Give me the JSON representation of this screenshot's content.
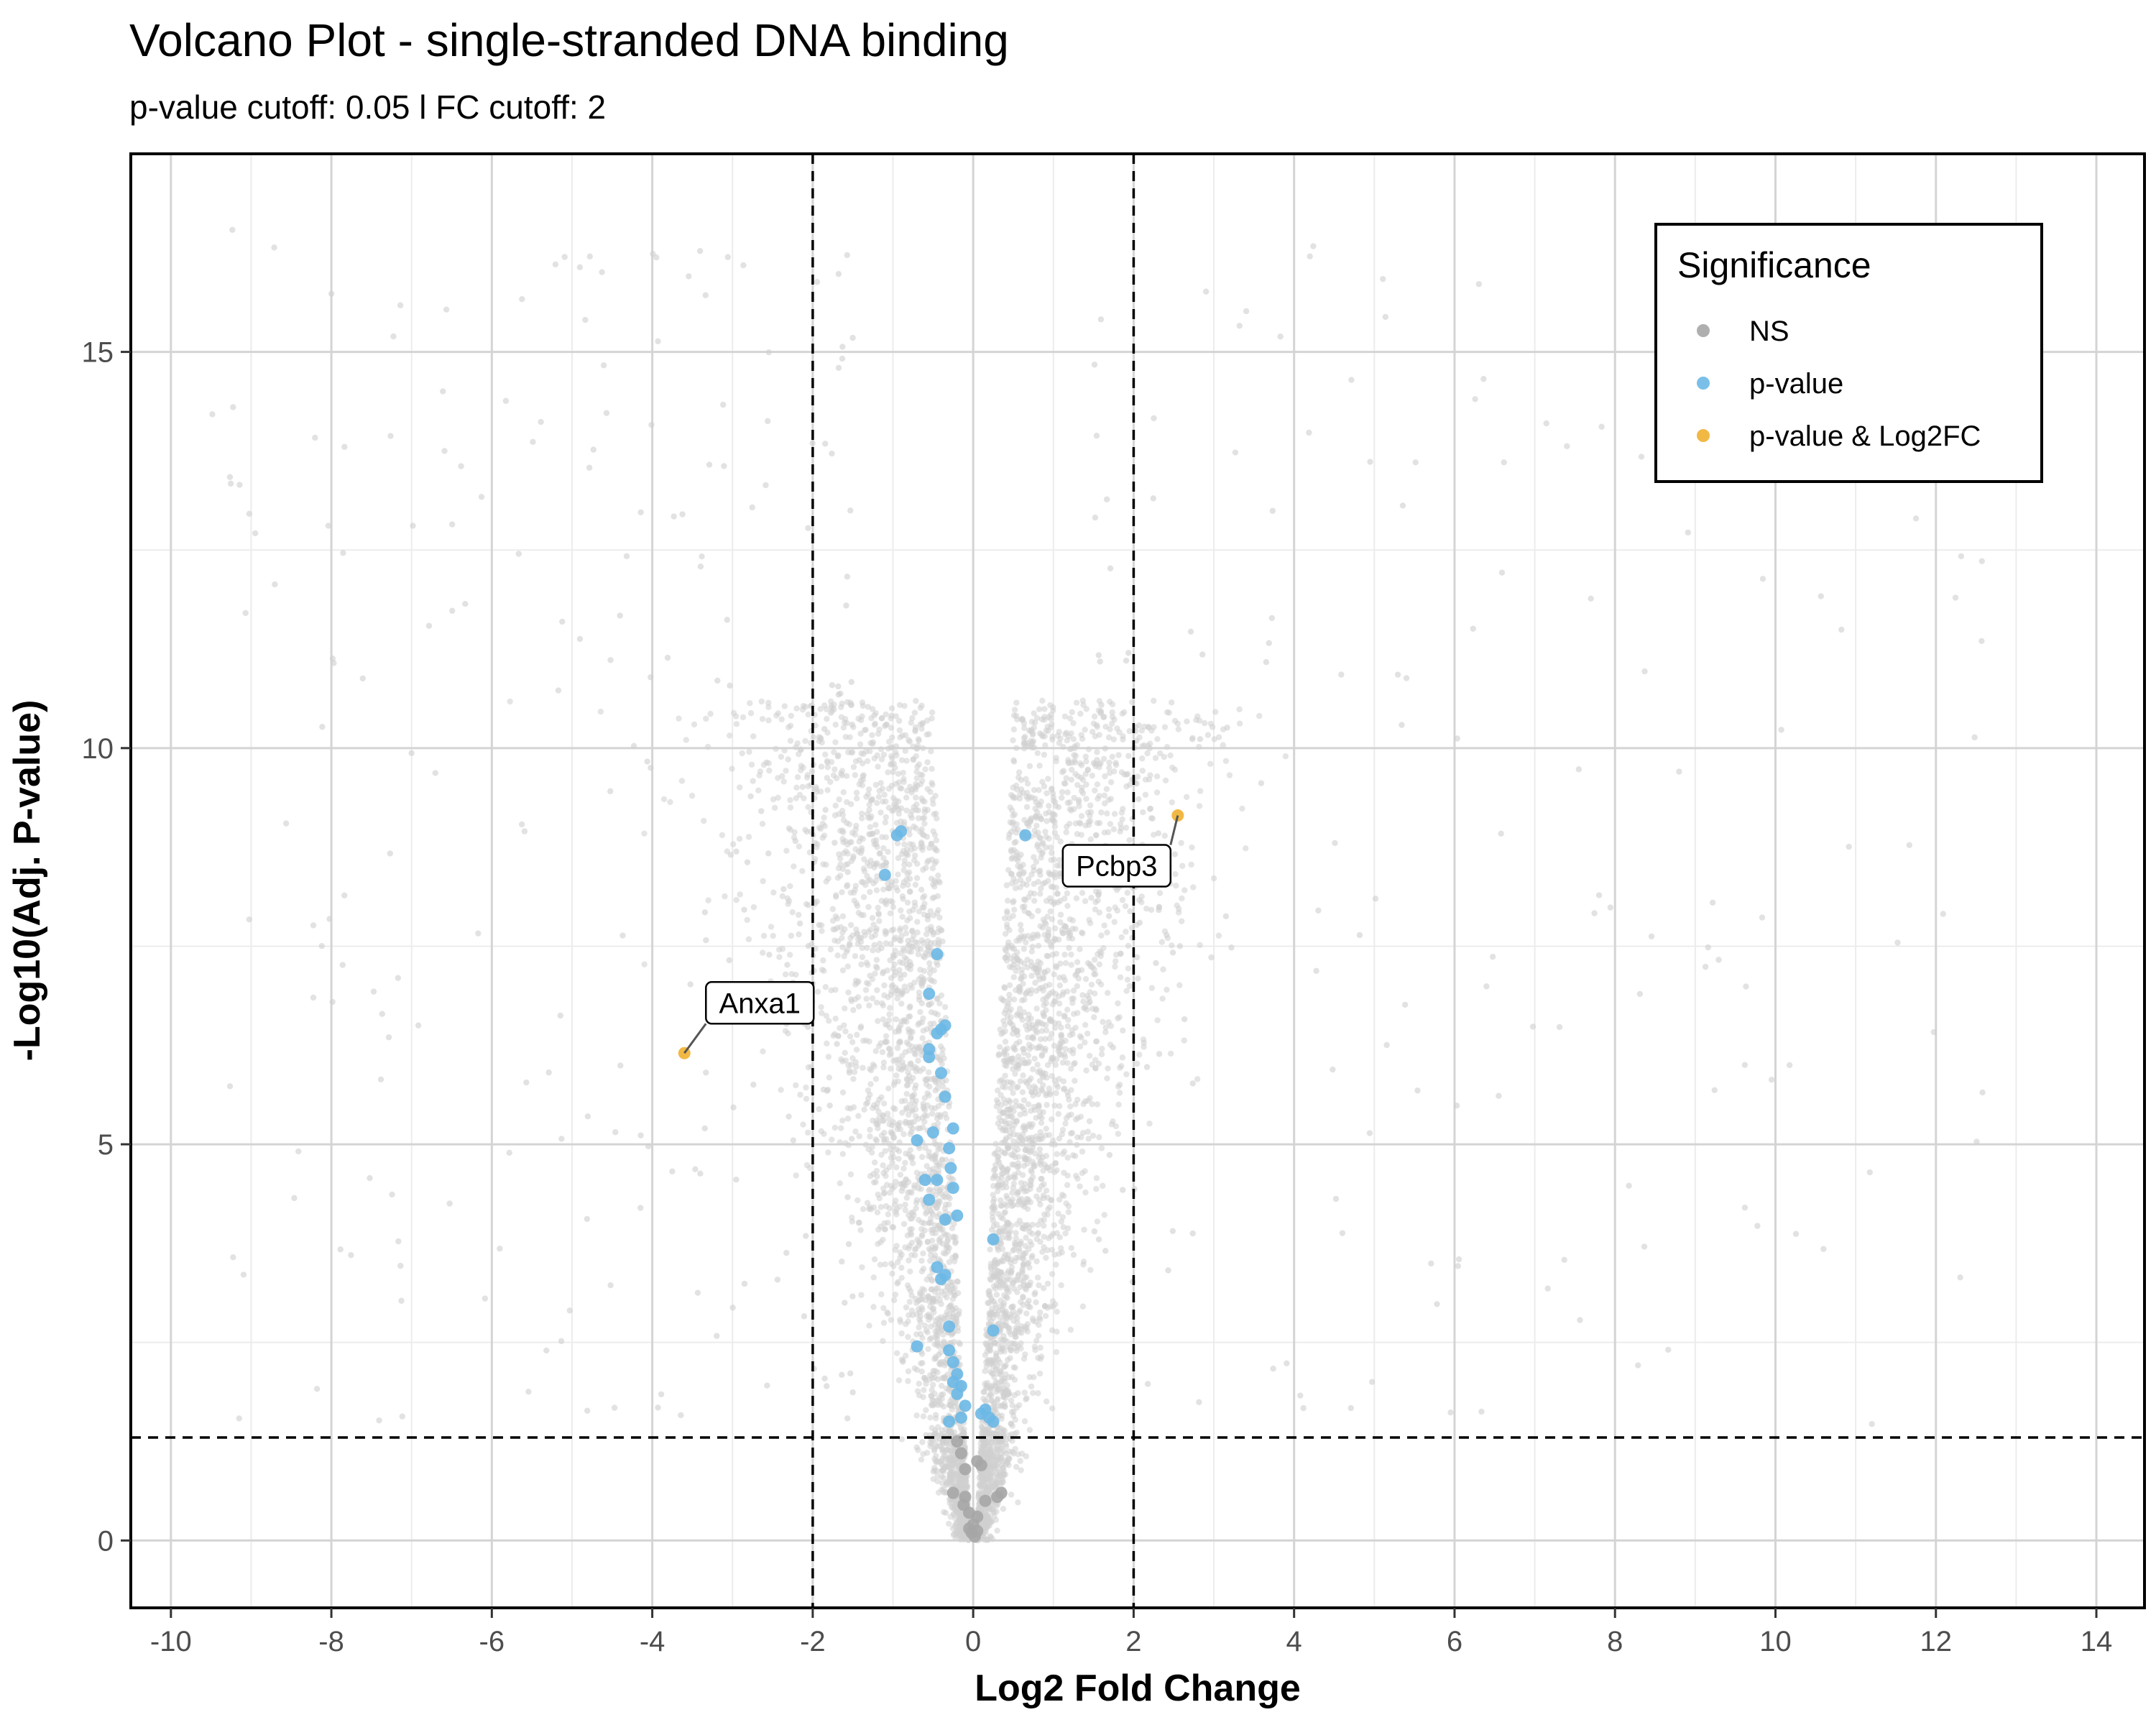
{
  "chart_data": {
    "type": "scatter",
    "title": "Volcano Plot - single-stranded DNA binding",
    "subtitle": "p-value cutoff: 0.05 l FC cutoff: 2",
    "xlabel": "Log2 Fold Change",
    "ylabel": "-Log10(Adj. P-value)",
    "xlim": [
      -10.5,
      14.6
    ],
    "ylim": [
      -0.85,
      17.5
    ],
    "xticks": [
      -10,
      -8,
      -6,
      -4,
      -2,
      0,
      2,
      4,
      6,
      8,
      10,
      12,
      14
    ],
    "xtick_labels": [
      "-10",
      "-8",
      "-6",
      "-4",
      "-2",
      "0",
      "2",
      "4",
      "6",
      "8",
      "10",
      "12",
      "14"
    ],
    "yticks": [
      0,
      5,
      10,
      15
    ],
    "ytick_labels": [
      "0",
      "5",
      "10",
      "15"
    ],
    "grid": true,
    "cutoffs": {
      "log2fc": 2,
      "neg_log10_p": 1.3
    },
    "legend": {
      "title": "Significance",
      "placement": "top-right",
      "entries": [
        {
          "key": "ns",
          "label": "NS",
          "color": "#a6a6a6"
        },
        {
          "key": "p",
          "label": "p-value",
          "color": "#6cb8e6"
        },
        {
          "key": "both",
          "label": "p-value & Log2FC",
          "color": "#f0b030"
        }
      ]
    },
    "background_color": "#cfcfcf",
    "series": [
      {
        "name": "NS",
        "color": "#a6a6a6",
        "points": [
          [
            -0.2,
            1.25
          ],
          [
            -0.15,
            1.1
          ],
          [
            -0.1,
            0.9
          ],
          [
            0.05,
            1.0
          ],
          [
            0.1,
            0.95
          ],
          [
            -0.25,
            0.6
          ],
          [
            -0.1,
            0.55
          ],
          [
            -0.12,
            0.45
          ],
          [
            0.15,
            0.5
          ],
          [
            -0.05,
            0.35
          ],
          [
            0.05,
            0.3
          ],
          [
            0.3,
            0.55
          ],
          [
            0.35,
            0.6
          ],
          [
            -0.02,
            0.1
          ],
          [
            0.02,
            0.05
          ],
          [
            -0.05,
            0.15
          ],
          [
            0.0,
            0.2
          ],
          [
            0.05,
            0.12
          ]
        ]
      },
      {
        "name": "p-value",
        "color": "#6cb8e6",
        "points": [
          [
            -0.95,
            8.9
          ],
          [
            -0.9,
            8.95
          ],
          [
            -1.1,
            8.4
          ],
          [
            0.65,
            8.9
          ],
          [
            -0.45,
            7.4
          ],
          [
            -0.55,
            6.9
          ],
          [
            -0.35,
            6.5
          ],
          [
            -0.45,
            6.4
          ],
          [
            -0.4,
            6.45
          ],
          [
            -0.55,
            6.2
          ],
          [
            -0.55,
            6.1
          ],
          [
            -0.4,
            5.9
          ],
          [
            -0.35,
            5.6
          ],
          [
            -0.5,
            5.15
          ],
          [
            -0.25,
            5.2
          ],
          [
            -0.7,
            5.05
          ],
          [
            -0.3,
            4.95
          ],
          [
            -0.28,
            4.7
          ],
          [
            -0.6,
            4.55
          ],
          [
            -0.45,
            4.55
          ],
          [
            -0.25,
            4.45
          ],
          [
            -0.55,
            4.3
          ],
          [
            -0.2,
            4.1
          ],
          [
            -0.35,
            4.05
          ],
          [
            -0.45,
            3.45
          ],
          [
            -0.4,
            3.3
          ],
          [
            -0.35,
            3.35
          ],
          [
            0.25,
            3.8
          ],
          [
            -0.3,
            2.7
          ],
          [
            -0.7,
            2.45
          ],
          [
            -0.3,
            2.4
          ],
          [
            0.25,
            2.65
          ],
          [
            -0.25,
            2.25
          ],
          [
            -0.2,
            2.1
          ],
          [
            -0.25,
            2.0
          ],
          [
            -0.15,
            1.95
          ],
          [
            -0.2,
            1.85
          ],
          [
            -0.1,
            1.7
          ],
          [
            -0.3,
            1.5
          ],
          [
            -0.15,
            1.55
          ],
          [
            0.15,
            1.65
          ],
          [
            0.2,
            1.55
          ],
          [
            0.25,
            1.5
          ],
          [
            0.1,
            1.6
          ]
        ]
      },
      {
        "name": "p-value & Log2FC",
        "color": "#f0b030",
        "points": [
          [
            -3.6,
            6.15
          ],
          [
            2.55,
            9.15
          ]
        ]
      }
    ],
    "annotations": [
      {
        "text": "Anxa1",
        "x": -3.6,
        "y": 6.15
      },
      {
        "text": "Pcbp3",
        "x": 2.55,
        "y": 9.15
      }
    ]
  }
}
